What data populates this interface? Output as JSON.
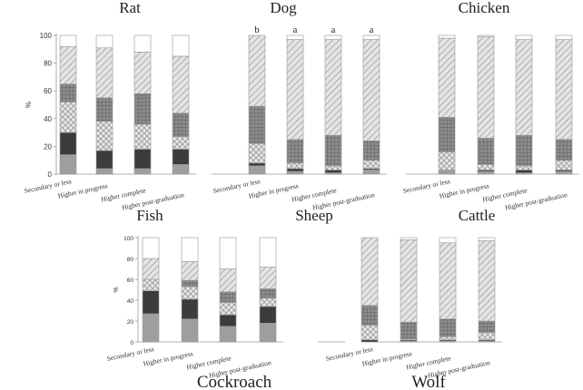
{
  "chart_data": {
    "type": "bar",
    "stacked": true,
    "unit": "%",
    "ylim": [
      0,
      100
    ],
    "yticks": [
      0,
      20,
      40,
      60,
      80,
      100
    ],
    "categories": [
      "Secondary or less",
      "Higher in progress",
      "Higher complete",
      "Higher post-graduation"
    ],
    "segment_order": [
      "dark_gray",
      "black",
      "cross_hatch",
      "grid",
      "diagonal_hatch",
      "white"
    ],
    "segment_colors": {
      "dark_gray": "#9e9e9e",
      "black": "#3c3c3c",
      "cross_hatch": "#d4d4d4",
      "grid": "#8c8c8c",
      "diagonal_hatch": "#d0d0d0",
      "white": "#ffffff"
    },
    "panels": [
      {
        "id": "rat",
        "title": "Rat",
        "stacks": [
          [
            14,
            16,
            22,
            13,
            27,
            8
          ],
          [
            4,
            13,
            21,
            17,
            36,
            9
          ],
          [
            4,
            14,
            18,
            22,
            30,
            12
          ],
          [
            7,
            11,
            9,
            17,
            41,
            15
          ]
        ]
      },
      {
        "id": "dog",
        "title": "Dog",
        "annotations": [
          "b",
          "a",
          "a",
          "a"
        ],
        "stacks": [
          [
            6,
            2,
            14,
            27,
            51,
            0
          ],
          [
            2,
            2,
            4,
            17,
            72,
            3
          ],
          [
            1,
            2,
            3,
            22,
            69,
            3
          ],
          [
            3,
            1,
            6,
            14,
            73,
            3
          ]
        ]
      },
      {
        "id": "chicken",
        "title": "Chicken",
        "stacks": [
          [
            3,
            0,
            13,
            25,
            57,
            2
          ],
          [
            2,
            1,
            4,
            19,
            73,
            1
          ],
          [
            1,
            2,
            3,
            22,
            69,
            3
          ],
          [
            2,
            1,
            7,
            15,
            72,
            3
          ]
        ]
      },
      {
        "id": "fish",
        "title": "Fish",
        "stacks": [
          [
            27,
            22,
            11,
            0,
            20,
            20
          ],
          [
            22,
            19,
            12,
            6,
            18,
            23
          ],
          [
            15,
            11,
            12,
            10,
            22,
            30
          ],
          [
            18,
            16,
            8,
            9,
            21,
            28
          ]
        ]
      },
      {
        "id": "sheep",
        "title": "Sheep",
        "stacks": []
      },
      {
        "id": "cattle",
        "title": "Cattle",
        "stacks": [
          [
            0,
            2,
            14,
            19,
            65,
            0
          ],
          [
            1,
            1,
            1,
            16,
            79,
            2
          ],
          [
            1,
            1,
            3,
            17,
            73,
            5
          ],
          [
            1,
            1,
            7,
            11,
            77,
            3
          ]
        ]
      }
    ],
    "bottom_labels": [
      "Cockroach",
      "Wolf"
    ],
    "ylabel": "%"
  }
}
